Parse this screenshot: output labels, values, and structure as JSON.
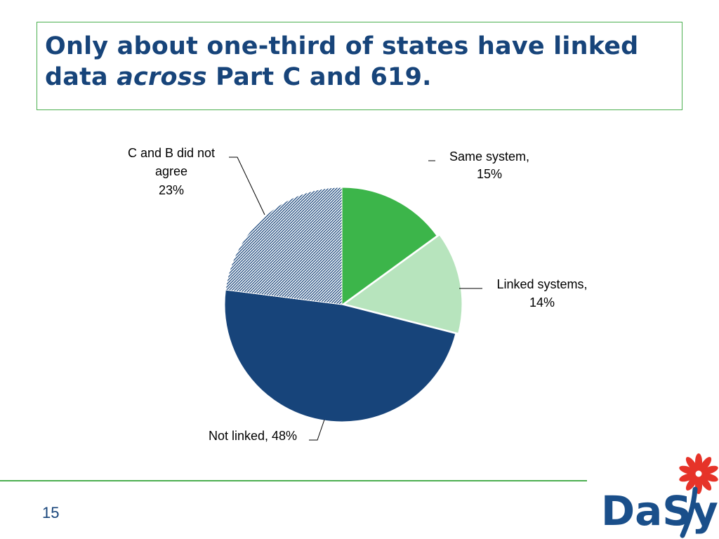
{
  "slide": {
    "title_part1": "Only about one-third of states have linked data ",
    "title_emph": "across",
    "title_part2": " Part C and 619.",
    "page_number": "15",
    "logo_text": "DaSy"
  },
  "chart_data": {
    "type": "pie",
    "title": "",
    "slices": [
      {
        "label_lines": [
          "Same system,",
          "15%"
        ],
        "value": 15,
        "color": "#3cb54a",
        "pattern": "none"
      },
      {
        "label_lines": [
          "Linked systems,",
          "14%"
        ],
        "value": 14,
        "color": "#b7e4bd",
        "pattern": "none"
      },
      {
        "label_lines": [
          "Not linked, 48%"
        ],
        "value": 48,
        "color": "#17447a",
        "pattern": "none"
      },
      {
        "label_lines": [
          "C and B did not",
          "agree",
          "23%"
        ],
        "value": 23,
        "color": "#17447a",
        "pattern": "hatched"
      }
    ],
    "start_angle": "12 o'clock",
    "direction": "clockwise"
  },
  "colors": {
    "title": "#17447a",
    "frame_border": "#4caf50",
    "footer_rule": "#4caf50",
    "logo_navy": "#1a4f8a",
    "logo_flower": "#e63329"
  }
}
